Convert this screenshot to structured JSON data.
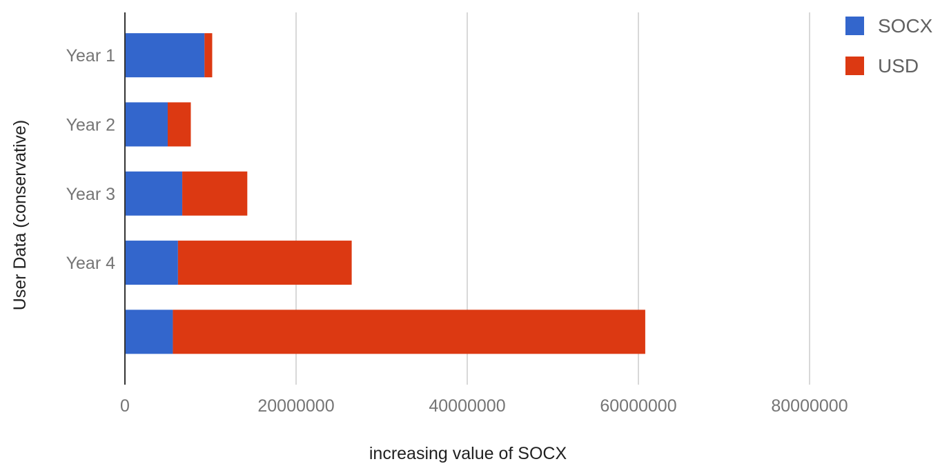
{
  "chart_data": {
    "type": "bar",
    "orientation": "horizontal",
    "stacked": true,
    "categories": [
      "Year 1",
      "Year 2",
      "Year 3",
      "Year 4",
      ""
    ],
    "series": [
      {
        "name": "SOCX",
        "color": "#3366cc",
        "values": [
          9300000,
          5000000,
          6700000,
          6200000,
          5600000
        ]
      },
      {
        "name": "USD",
        "color": "#dc3912",
        "values": [
          900000,
          2700000,
          7600000,
          20300000,
          55200000
        ]
      }
    ],
    "xlim": [
      0,
      100000000
    ],
    "xticks": [
      0,
      20000000,
      40000000,
      60000000,
      80000000
    ],
    "xtick_labels": [
      "0",
      "20000000",
      "40000000",
      "60000000",
      "80000000"
    ],
    "xlabel": "increasing value of SOCX",
    "ylabel": "User Data (conservative)",
    "title": "",
    "grid": "vertical",
    "legend_position": "top-right"
  }
}
